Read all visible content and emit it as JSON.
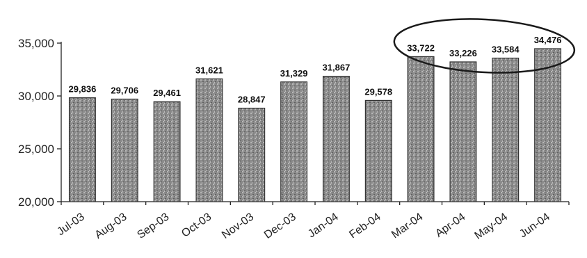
{
  "chart_data": {
    "type": "bar",
    "title": "",
    "xlabel": "",
    "ylabel": "",
    "categories": [
      "Jul-03",
      "Aug-03",
      "Sep-03",
      "Oct-03",
      "Nov-03",
      "Dec-03",
      "Jan-04",
      "Feb-04",
      "Mar-04",
      "Apr-04",
      "May-04",
      "Jun-04"
    ],
    "values": [
      29836,
      29706,
      29461,
      31621,
      28847,
      31329,
      31867,
      29578,
      33722,
      33226,
      33584,
      34476
    ],
    "data_labels": [
      "29,836",
      "29,706",
      "29,461",
      "31,621",
      "28,847",
      "31,329",
      "31,867",
      "29,578",
      "33,722",
      "33,226",
      "33,584",
      "34,476"
    ],
    "ylim": [
      20000,
      35000
    ],
    "yticks": [
      20000,
      25000,
      30000,
      35000
    ],
    "ytick_labels": [
      "20,000",
      "25,000",
      "30,000",
      "35,000"
    ],
    "grid": false,
    "highlight": {
      "categories": [
        "Mar-04",
        "Apr-04",
        "May-04",
        "Jun-04"
      ],
      "shape": "ellipse"
    },
    "colors": {
      "bar_fill": "#8a8a8a",
      "bar_stroke": "#333333",
      "axis": "#222222"
    }
  }
}
